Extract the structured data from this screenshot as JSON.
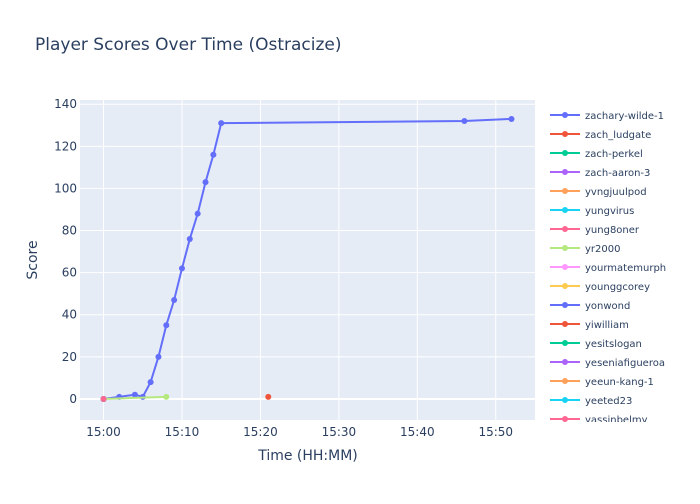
{
  "chart_data": {
    "type": "line",
    "title": "Player Scores Over Time (Ostracize)",
    "x_label": "Time (HH:MM)",
    "y_label": "Score",
    "xlim": [
      "14:57",
      "15:55"
    ],
    "xticks": [
      "15:00",
      "15:10",
      "15:20",
      "15:30",
      "15:40",
      "15:50"
    ],
    "ylim": [
      -10,
      142
    ],
    "yticks": [
      0,
      20,
      40,
      60,
      80,
      100,
      120,
      140
    ],
    "grid": true,
    "series": [
      {
        "name": "zachary-wilde-1",
        "color": "#636efa",
        "x": [
          "15:00",
          "15:02",
          "15:04",
          "15:05",
          "15:06",
          "15:07",
          "15:08",
          "15:09",
          "15:10",
          "15:11",
          "15:12",
          "15:13",
          "15:14",
          "15:15",
          "15:46",
          "15:52"
        ],
        "values": [
          0,
          1,
          2,
          1,
          8,
          20,
          35,
          47,
          62,
          76,
          88,
          103,
          116,
          131,
          132,
          133
        ]
      },
      {
        "name": "zach_ludgate",
        "color": "#EF553B",
        "x": [
          "15:21"
        ],
        "values": [
          1
        ]
      },
      {
        "name": "zach-perkel",
        "color": "#00cc96",
        "x": [
          "15:00"
        ],
        "values": [
          0
        ]
      },
      {
        "name": "zach-aaron-3",
        "color": "#ab63fa",
        "x": [
          "15:00"
        ],
        "values": [
          0
        ]
      },
      {
        "name": "yvngjuulpod",
        "color": "#FFA15A",
        "x": [
          "15:00"
        ],
        "values": [
          0
        ]
      },
      {
        "name": "yungvirus",
        "color": "#19d3f3",
        "x": [
          "15:00"
        ],
        "values": [
          0
        ]
      },
      {
        "name": "yung8oner",
        "color": "#FF6692",
        "x": [
          "15:00"
        ],
        "values": [
          0
        ]
      },
      {
        "name": "yr2000",
        "color": "#B6E880",
        "x": [
          "15:00",
          "15:08"
        ],
        "values": [
          0,
          1
        ]
      },
      {
        "name": "yourmatemurph",
        "color": "#FF97FF",
        "x": [
          "15:00"
        ],
        "values": [
          0
        ]
      },
      {
        "name": "younggcorey",
        "color": "#FECB52",
        "x": [
          "15:00"
        ],
        "values": [
          0
        ]
      },
      {
        "name": "yonwond",
        "color": "#636efa",
        "x": [
          "15:00"
        ],
        "values": [
          0
        ]
      },
      {
        "name": "yiwilliam",
        "color": "#EF553B",
        "x": [
          "15:00"
        ],
        "values": [
          0
        ]
      },
      {
        "name": "yesitslogan",
        "color": "#00cc96",
        "x": [
          "15:00"
        ],
        "values": [
          0
        ]
      },
      {
        "name": "yeseniafigueroa",
        "color": "#ab63fa",
        "x": [
          "15:00"
        ],
        "values": [
          0
        ]
      },
      {
        "name": "yeeun-kang-1",
        "color": "#FFA15A",
        "x": [
          "15:00"
        ],
        "values": [
          0
        ]
      },
      {
        "name": "yeeted23",
        "color": "#19d3f3",
        "x": [
          "15:00"
        ],
        "values": [
          0
        ]
      },
      {
        "name": "yassinbelmy",
        "color": "#FF6692",
        "x": [
          "15:00"
        ],
        "values": [
          0
        ]
      }
    ]
  }
}
